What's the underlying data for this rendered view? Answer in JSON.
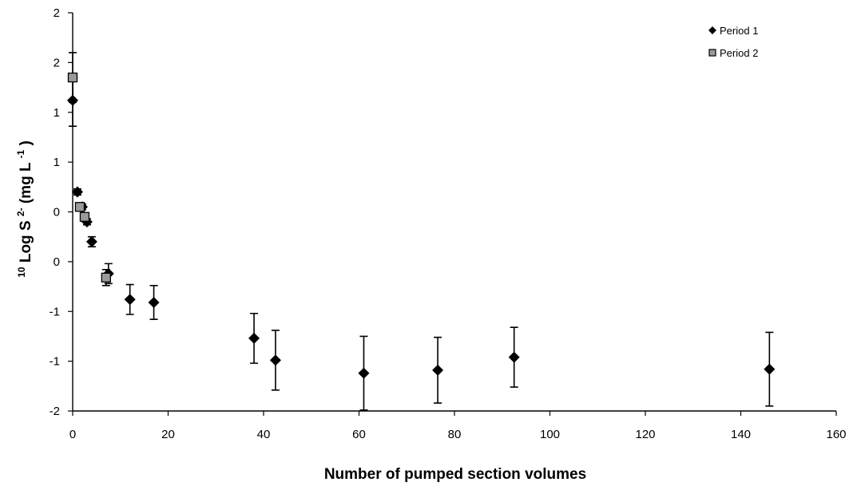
{
  "chart_data": {
    "type": "scatter",
    "title": "",
    "xlabel": "Number of pumped section volumes",
    "ylabel_parts": {
      "prefix_sup": "10",
      "main": "Log S",
      "main_sup": "2-",
      "unit_open": " (mg L",
      "unit_sup": "-1",
      "unit_close": ")"
    },
    "xlim": [
      0,
      160
    ],
    "ylim": [
      -2,
      2
    ],
    "x_ticks": [
      0,
      20,
      40,
      60,
      80,
      100,
      120,
      140,
      160
    ],
    "y_ticks": [
      -2,
      -1.5,
      -1,
      -0.5,
      0,
      0.5,
      1,
      1.5,
      2
    ],
    "y_tick_labels": [
      "-2",
      "-1",
      "-1",
      "0",
      "0",
      "1",
      "1",
      "2",
      "2"
    ],
    "grid": false,
    "legend_position": "top-right",
    "series": [
      {
        "name": "Period 1",
        "marker": "diamond",
        "color": "#000000",
        "points": [
          {
            "x": 0,
            "y": 1.12,
            "err": 0.26
          },
          {
            "x": 1,
            "y": 0.2,
            "err": 0.03
          },
          {
            "x": 2,
            "y": 0.05,
            "err": 0.03
          },
          {
            "x": 3,
            "y": -0.1,
            "err": 0.03
          },
          {
            "x": 4,
            "y": -0.3,
            "err": 0.05
          },
          {
            "x": 7.5,
            "y": -0.62,
            "err": 0.1
          },
          {
            "x": 12,
            "y": -0.88,
            "err": 0.15
          },
          {
            "x": 17,
            "y": -0.91,
            "err": 0.17
          },
          {
            "x": 38,
            "y": -1.27,
            "err": 0.25
          },
          {
            "x": 42.5,
            "y": -1.49,
            "err": 0.3
          },
          {
            "x": 61,
            "y": -1.62,
            "err": 0.37
          },
          {
            "x": 76.5,
            "y": -1.59,
            "err": 0.33
          },
          {
            "x": 92.5,
            "y": -1.46,
            "err": 0.3
          },
          {
            "x": 146,
            "y": -1.58,
            "err": 0.37
          }
        ]
      },
      {
        "name": "Period 2",
        "marker": "square",
        "color": "#000000",
        "points": [
          {
            "x": 0,
            "y": 1.35,
            "err": 0.25
          },
          {
            "x": 1.5,
            "y": 0.05,
            "err": 0.03
          },
          {
            "x": 2.5,
            "y": -0.05,
            "err": 0.03
          },
          {
            "x": 7,
            "y": -0.66,
            "err": 0.08
          }
        ]
      }
    ]
  }
}
